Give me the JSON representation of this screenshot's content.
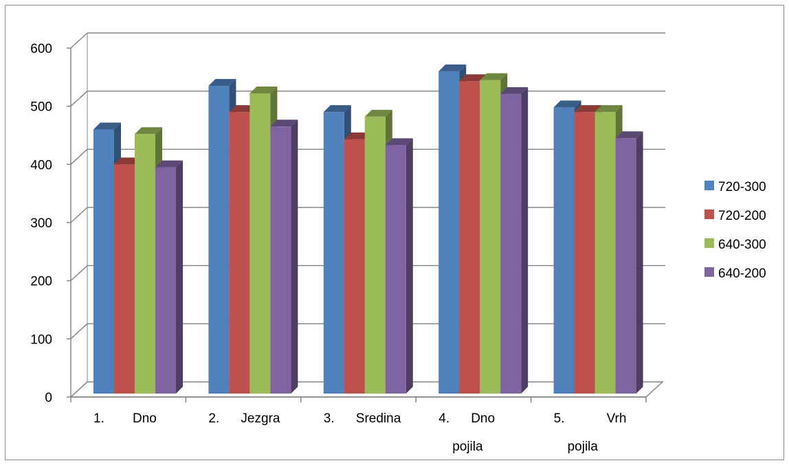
{
  "chart_data": {
    "type": "bar",
    "title": "",
    "xlabel": "",
    "ylabel": "",
    "ylim": [
      0,
      600
    ],
    "yticks": [
      0,
      100,
      200,
      300,
      400,
      500,
      600
    ],
    "grid": true,
    "legend_position": "right",
    "categories": [
      [
        "1.",
        "Dno",
        ""
      ],
      [
        "2.",
        "Jezgra",
        ""
      ],
      [
        "3.",
        "Sredina",
        ""
      ],
      [
        "4.",
        "Dno",
        "pojila"
      ],
      [
        "5.",
        "Vrh",
        "pojila"
      ]
    ],
    "series": [
      {
        "name": "720-300",
        "color": "#4F81BD",
        "values": [
          460,
          535,
          490,
          560,
          498
        ]
      },
      {
        "name": "720-200",
        "color": "#C0504D",
        "values": [
          400,
          490,
          443,
          543,
          490
        ]
      },
      {
        "name": "640-300",
        "color": "#9BBB59",
        "values": [
          452,
          522,
          482,
          545,
          490
        ]
      },
      {
        "name": "640-200",
        "color": "#8064A2",
        "values": [
          395,
          465,
          433,
          521,
          445
        ]
      }
    ]
  }
}
